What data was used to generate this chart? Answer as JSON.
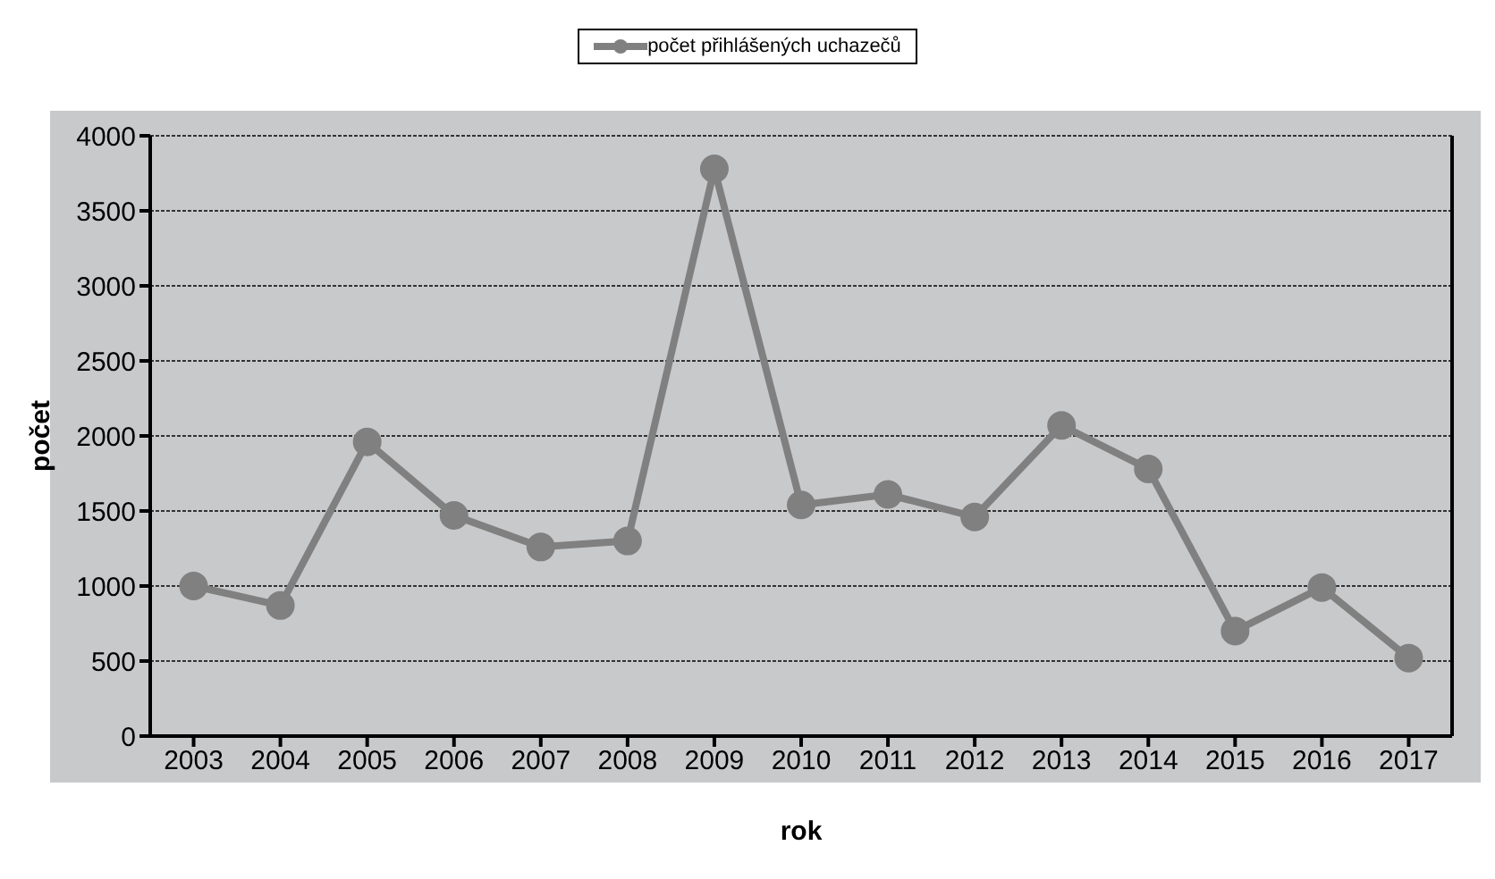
{
  "chart_data": {
    "type": "line",
    "xlabel": "rok",
    "ylabel": "počet",
    "categories": [
      "2003",
      "2004",
      "2005",
      "2006",
      "2007",
      "2008",
      "2009",
      "2010",
      "2011",
      "2012",
      "2013",
      "2014",
      "2015",
      "2016",
      "2017"
    ],
    "series": [
      {
        "name": "počet přihlášených uchazečů",
        "color": "#808080",
        "values": [
          1000,
          870,
          1960,
          1470,
          1260,
          1300,
          3780,
          1540,
          1610,
          1460,
          2070,
          1780,
          700,
          990,
          520
        ]
      }
    ],
    "ylim": [
      0,
      4000
    ],
    "yticks": [
      0,
      500,
      1000,
      1500,
      2000,
      2500,
      3000,
      3500,
      4000
    ],
    "grid": "y",
    "legend": "top",
    "marker": "circle",
    "line_style": "solid"
  }
}
